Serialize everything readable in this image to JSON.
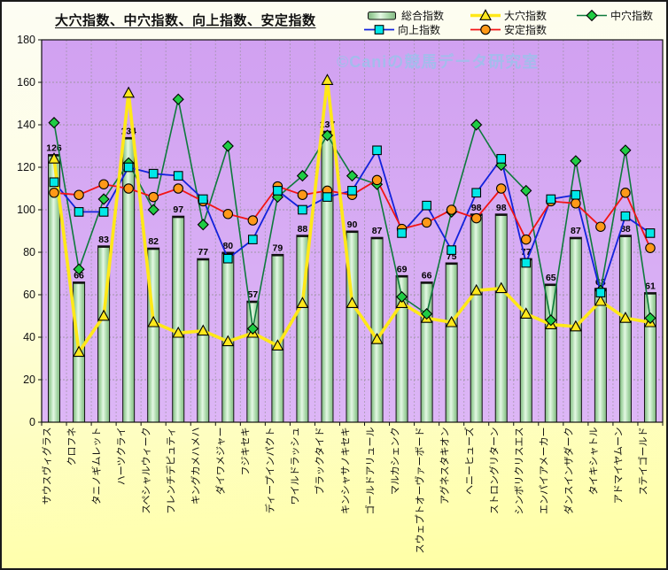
{
  "title": "大穴指数、中穴指数、向上指数、安定指数",
  "watermark": "©Caniの競馬データ研究室",
  "colors": {
    "outer_bg_top": "#fdfdf4",
    "outer_bg_bottom": "#ffffa2",
    "plot_bg": "#d7aaf4",
    "grid": "#8f8f8f",
    "bar_fill": "#b9e6b9",
    "bar_stroke": "#111111",
    "improve_line": "#1222dc",
    "improve_marker": "#00e8e8",
    "longshot_line": "#ffe818",
    "longshot_marker": "#ffe81c",
    "stable_line": "#f21414",
    "stable_marker": "#ff9918",
    "midshot_line": "#0e7a3c",
    "midshot_marker": "#1fcc44",
    "watermark": "#a4bcec"
  },
  "chart_data": {
    "type": "bar",
    "subtype": "bar+line-combo",
    "title": "大穴指数、中穴指数、向上指数、安定指数",
    "xlabel": "",
    "ylabel": "",
    "ylim": [
      0,
      180
    ],
    "y_ticks": [
      0,
      20,
      40,
      60,
      80,
      100,
      120,
      140,
      160,
      180
    ],
    "grid": true,
    "legend_position": "top-right",
    "categories": [
      "サウスヴィグラス",
      "クロフネ",
      "タニノギムレット",
      "ハーツクライ",
      "スペシャルウィーク",
      "フレンチデピュティ",
      "キングカメハメハ",
      "ダイワメジャー",
      "フジキセキ",
      "ディープインパクト",
      "ワイルドラッシュ",
      "ブラックタイド",
      "キンシャサノキセキ",
      "ゴールドアリュール",
      "マルカシェンク",
      "スウェプトオーヴァーボード",
      "アグネスタキオン",
      "ヘニーヒューズ",
      "ストロングリターン",
      "シンボリクリスエス",
      "エンパイアメーカー",
      "ダンスインザダーク",
      "タイキシャトル",
      "アドマイヤムーン",
      "ステイゴールド"
    ],
    "series": [
      {
        "name": "総合指数",
        "type": "bar",
        "marker": "bar",
        "data_labels": true,
        "values": [
          126,
          66,
          83,
          134,
          82,
          97,
          77,
          80,
          57,
          79,
          88,
          137,
          90,
          87,
          69,
          66,
          75,
          98,
          98,
          77,
          65,
          87,
          63,
          88,
          61
        ]
      },
      {
        "name": "向上指数",
        "type": "line",
        "marker": "square",
        "values": [
          113,
          99,
          99,
          120,
          117,
          116,
          105,
          77,
          86,
          109,
          100,
          106,
          109,
          128,
          89,
          102,
          81,
          108,
          124,
          75,
          105,
          107,
          61,
          97,
          89
        ]
      },
      {
        "name": "大穴指数",
        "type": "line",
        "marker": "triangle",
        "values": [
          124,
          33,
          50,
          155,
          47,
          42,
          43,
          38,
          42,
          36,
          56,
          161,
          56,
          39,
          56,
          49,
          47,
          62,
          63,
          51,
          46,
          45,
          57,
          49,
          47
        ]
      },
      {
        "name": "安定指数",
        "type": "line",
        "marker": "circle",
        "values": [
          108,
          107,
          112,
          110,
          106,
          110,
          104,
          98,
          95,
          111,
          107,
          109,
          107,
          114,
          91,
          94,
          100,
          96,
          110,
          86,
          104,
          103,
          92,
          108,
          82
        ]
      },
      {
        "name": "中穴指数",
        "type": "line",
        "marker": "diamond",
        "values": [
          141,
          72,
          105,
          122,
          100,
          152,
          93,
          130,
          44,
          106,
          116,
          135,
          116,
          112,
          59,
          51,
          99,
          140,
          121,
          109,
          48,
          123,
          62,
          128,
          49
        ]
      }
    ]
  }
}
